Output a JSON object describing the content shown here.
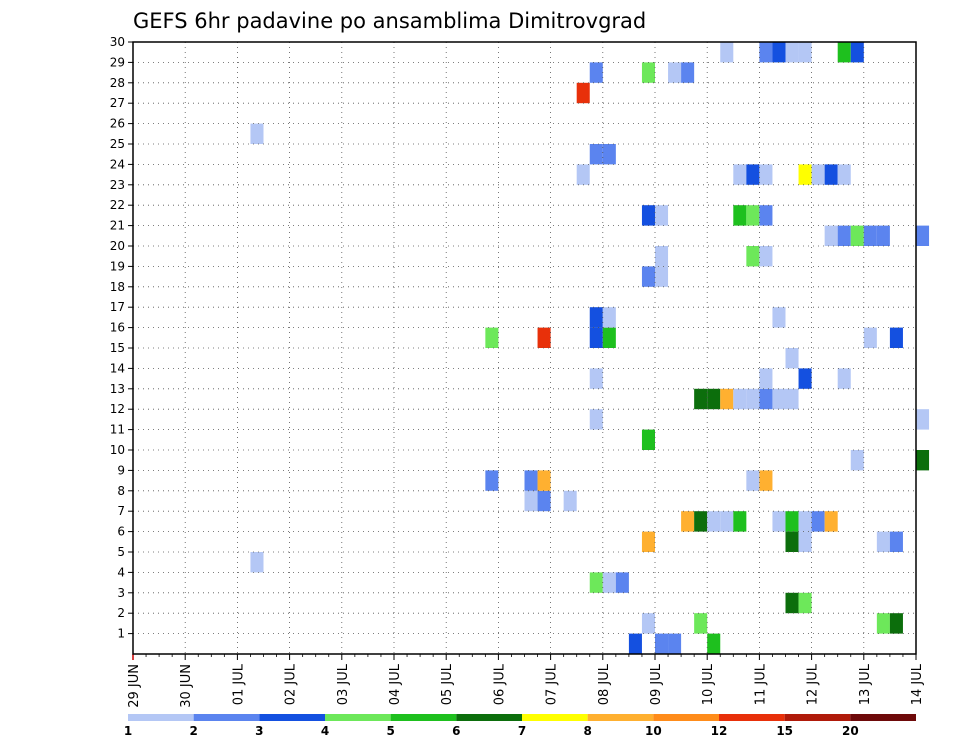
{
  "chart_data": {
    "type": "heatmap",
    "title": "GEFS 6hr padavine po ansamblima Dimitrovgrad",
    "xlabel": "",
    "ylabel": "",
    "x_ticks": [
      "29 JUN",
      "30 JUN",
      "01 JUL",
      "02 JUL",
      "03 JUL",
      "04 JUL",
      "05 JUL",
      "06 JUL",
      "07 JUL",
      "08 JUL",
      "09 JUL",
      "10 JUL",
      "11 JUL",
      "12 JUL",
      "13 JUL",
      "14 JUL"
    ],
    "x_range_days": [
      0,
      15
    ],
    "y_ticks": [
      1,
      2,
      3,
      4,
      5,
      6,
      7,
      8,
      9,
      10,
      11,
      12,
      13,
      14,
      15,
      16,
      17,
      18,
      19,
      20,
      21,
      22,
      23,
      24,
      25,
      26,
      27,
      28,
      29,
      30
    ],
    "y_range": [
      0,
      30
    ],
    "grid": true,
    "legend": {
      "placement": "bottom",
      "labels": [
        "1",
        "2",
        "3",
        "4",
        "5",
        "6",
        "7",
        "8",
        "10",
        "12",
        "15",
        "20"
      ],
      "colors": [
        "#b4c7f5",
        "#5b84ef",
        "#1450e0",
        "#6de85a",
        "#1ec01e",
        "#0c6e0c",
        "#ffff00",
        "#ffb030",
        "#ff8c1a",
        "#e8300a",
        "#b01a0a",
        "#6e0a0a"
      ]
    },
    "cells_note_units": "x = day offset from 29 JUN 00Z, 0.25 per 6h step; y = ensemble member; v = colour class index",
    "cells": [
      {
        "x": 11.0,
        "y": 0,
        "v": 4
      },
      {
        "x": 9.5,
        "y": 0,
        "v": 2
      },
      {
        "x": 10.0,
        "y": 0,
        "v": 1
      },
      {
        "x": 10.25,
        "y": 0,
        "v": 1
      },
      {
        "x": 9.75,
        "y": 1,
        "v": 0
      },
      {
        "x": 10.75,
        "y": 1,
        "v": 3
      },
      {
        "x": 14.25,
        "y": 1,
        "v": 3
      },
      {
        "x": 14.5,
        "y": 1,
        "v": 5
      },
      {
        "x": 12.5,
        "y": 2,
        "v": 5
      },
      {
        "x": 12.75,
        "y": 2,
        "v": 3
      },
      {
        "x": 8.75,
        "y": 3,
        "v": 3
      },
      {
        "x": 9.0,
        "y": 3,
        "v": 0
      },
      {
        "x": 9.25,
        "y": 3,
        "v": 1
      },
      {
        "x": 2.25,
        "y": 4,
        "v": 0
      },
      {
        "x": 9.75,
        "y": 5,
        "v": 7
      },
      {
        "x": 12.5,
        "y": 5,
        "v": 5
      },
      {
        "x": 12.75,
        "y": 5,
        "v": 0
      },
      {
        "x": 14.25,
        "y": 5,
        "v": 0
      },
      {
        "x": 14.5,
        "y": 5,
        "v": 1
      },
      {
        "x": 10.5,
        "y": 6,
        "v": 7
      },
      {
        "x": 10.75,
        "y": 6,
        "v": 5
      },
      {
        "x": 11.0,
        "y": 6,
        "v": 0
      },
      {
        "x": 11.25,
        "y": 6,
        "v": 0
      },
      {
        "x": 11.5,
        "y": 6,
        "v": 4
      },
      {
        "x": 12.25,
        "y": 6,
        "v": 0
      },
      {
        "x": 12.5,
        "y": 6,
        "v": 4
      },
      {
        "x": 12.75,
        "y": 6,
        "v": 0
      },
      {
        "x": 13.0,
        "y": 6,
        "v": 1
      },
      {
        "x": 13.25,
        "y": 6,
        "v": 7
      },
      {
        "x": 7.5,
        "y": 7,
        "v": 0
      },
      {
        "x": 7.75,
        "y": 7,
        "v": 1
      },
      {
        "x": 8.25,
        "y": 7,
        "v": 0
      },
      {
        "x": 6.75,
        "y": 8,
        "v": 1
      },
      {
        "x": 7.5,
        "y": 8,
        "v": 1
      },
      {
        "x": 7.75,
        "y": 8,
        "v": 7
      },
      {
        "x": 11.75,
        "y": 8,
        "v": 0
      },
      {
        "x": 12.0,
        "y": 8,
        "v": 7
      },
      {
        "x": 13.75,
        "y": 9,
        "v": 0
      },
      {
        "x": 15.0,
        "y": 9,
        "v": 5
      },
      {
        "x": 9.75,
        "y": 10,
        "v": 4
      },
      {
        "x": 8.75,
        "y": 11,
        "v": 0
      },
      {
        "x": 15.0,
        "y": 11,
        "v": 0
      },
      {
        "x": 10.75,
        "y": 12,
        "v": 5
      },
      {
        "x": 11.0,
        "y": 12,
        "v": 5
      },
      {
        "x": 11.25,
        "y": 12,
        "v": 7
      },
      {
        "x": 11.5,
        "y": 12,
        "v": 0
      },
      {
        "x": 11.75,
        "y": 12,
        "v": 0
      },
      {
        "x": 12.0,
        "y": 12,
        "v": 1
      },
      {
        "x": 12.25,
        "y": 12,
        "v": 0
      },
      {
        "x": 12.5,
        "y": 12,
        "v": 0
      },
      {
        "x": 8.75,
        "y": 13,
        "v": 0
      },
      {
        "x": 12.0,
        "y": 13,
        "v": 0
      },
      {
        "x": 12.75,
        "y": 13,
        "v": 2
      },
      {
        "x": 13.5,
        "y": 13,
        "v": 0
      },
      {
        "x": 12.5,
        "y": 14,
        "v": 0
      },
      {
        "x": 6.75,
        "y": 15,
        "v": 3
      },
      {
        "x": 7.75,
        "y": 15,
        "v": 9
      },
      {
        "x": 8.75,
        "y": 15,
        "v": 2
      },
      {
        "x": 9.0,
        "y": 15,
        "v": 4
      },
      {
        "x": 14.0,
        "y": 15,
        "v": 0
      },
      {
        "x": 14.5,
        "y": 15,
        "v": 2
      },
      {
        "x": 8.75,
        "y": 16,
        "v": 2
      },
      {
        "x": 9.0,
        "y": 16,
        "v": 0
      },
      {
        "x": 12.25,
        "y": 16,
        "v": 0
      },
      {
        "x": 9.75,
        "y": 18,
        "v": 1
      },
      {
        "x": 10.0,
        "y": 18,
        "v": 0
      },
      {
        "x": 10.0,
        "y": 19,
        "v": 0
      },
      {
        "x": 11.75,
        "y": 19,
        "v": 3
      },
      {
        "x": 12.0,
        "y": 19,
        "v": 0
      },
      {
        "x": 13.25,
        "y": 20,
        "v": 0
      },
      {
        "x": 13.5,
        "y": 20,
        "v": 1
      },
      {
        "x": 13.75,
        "y": 20,
        "v": 3
      },
      {
        "x": 14.0,
        "y": 20,
        "v": 1
      },
      {
        "x": 14.25,
        "y": 20,
        "v": 1
      },
      {
        "x": 15.0,
        "y": 20,
        "v": 1
      },
      {
        "x": 9.75,
        "y": 21,
        "v": 2
      },
      {
        "x": 10.0,
        "y": 21,
        "v": 0
      },
      {
        "x": 11.5,
        "y": 21,
        "v": 4
      },
      {
        "x": 11.75,
        "y": 21,
        "v": 3
      },
      {
        "x": 12.0,
        "y": 21,
        "v": 1
      },
      {
        "x": 8.5,
        "y": 23,
        "v": 0
      },
      {
        "x": 11.5,
        "y": 23,
        "v": 0
      },
      {
        "x": 11.75,
        "y": 23,
        "v": 2
      },
      {
        "x": 12.0,
        "y": 23,
        "v": 0
      },
      {
        "x": 12.75,
        "y": 23,
        "v": 6
      },
      {
        "x": 13.0,
        "y": 23,
        "v": 0
      },
      {
        "x": 13.25,
        "y": 23,
        "v": 2
      },
      {
        "x": 13.5,
        "y": 23,
        "v": 0
      },
      {
        "x": 8.75,
        "y": 24,
        "v": 1
      },
      {
        "x": 9.0,
        "y": 24,
        "v": 1
      },
      {
        "x": 2.25,
        "y": 25,
        "v": 0
      },
      {
        "x": 8.5,
        "y": 27,
        "v": 9
      },
      {
        "x": 8.75,
        "y": 28,
        "v": 1
      },
      {
        "x": 9.75,
        "y": 28,
        "v": 3
      },
      {
        "x": 10.25,
        "y": 28,
        "v": 0
      },
      {
        "x": 10.5,
        "y": 28,
        "v": 1
      },
      {
        "x": 11.25,
        "y": 29,
        "v": 0
      },
      {
        "x": 12.0,
        "y": 29,
        "v": 1
      },
      {
        "x": 12.25,
        "y": 29,
        "v": 2
      },
      {
        "x": 12.5,
        "y": 29,
        "v": 0
      },
      {
        "x": 12.75,
        "y": 29,
        "v": 0
      },
      {
        "x": 13.5,
        "y": 29,
        "v": 4
      },
      {
        "x": 13.75,
        "y": 29,
        "v": 2
      }
    ]
  }
}
